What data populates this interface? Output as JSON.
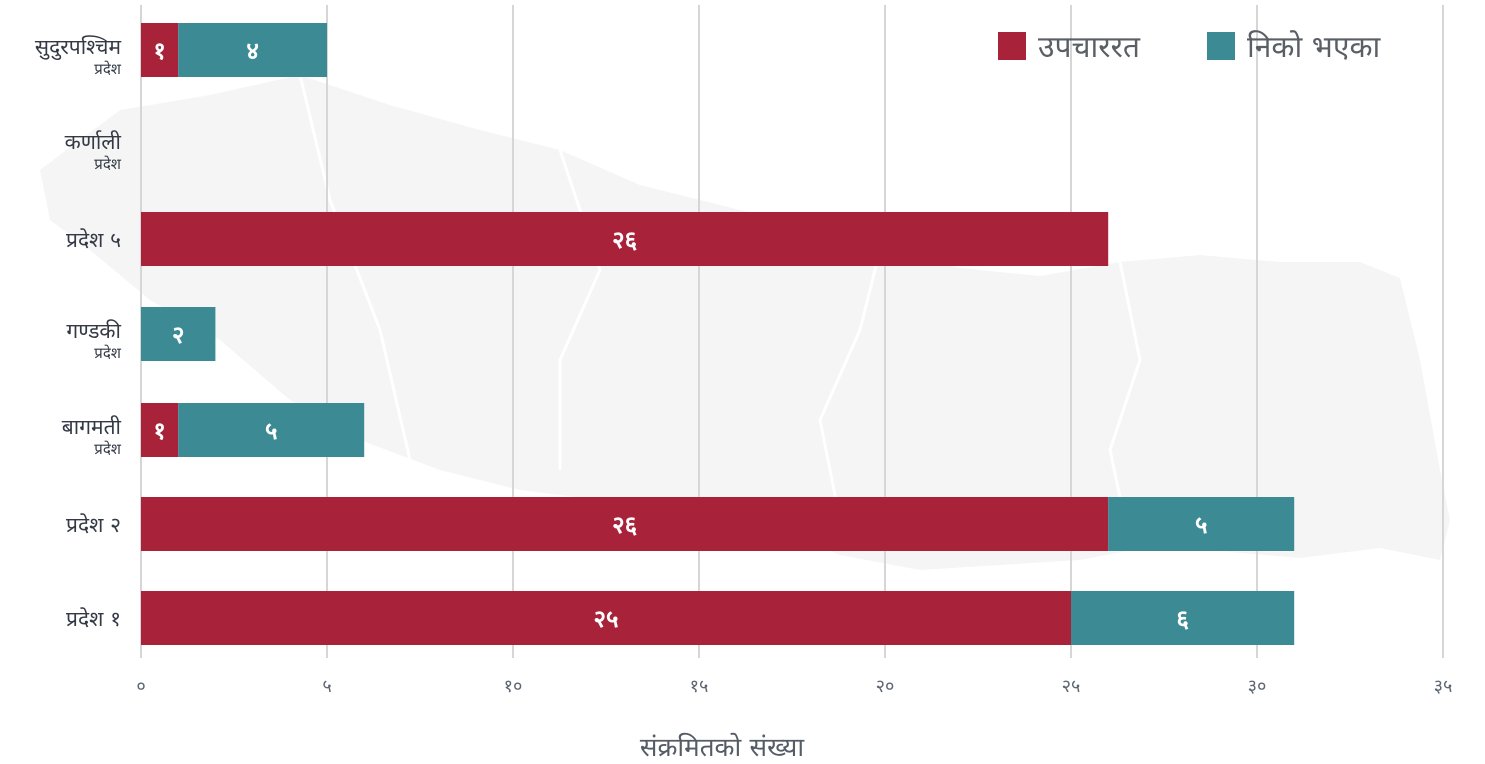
{
  "chart_data": {
    "type": "bar",
    "orientation": "horizontal",
    "stacked": true,
    "categories": [
      {
        "main": "सुदुरपश्चिम",
        "sub": "प्रदेश"
      },
      {
        "main": "कर्णाली",
        "sub": "प्रदेश"
      },
      {
        "main": "प्रदेश ५",
        "sub": ""
      },
      {
        "main": "गण्डकी",
        "sub": "प्रदेश"
      },
      {
        "main": "बागमती",
        "sub": "प्रदेश"
      },
      {
        "main": "प्रदेश २",
        "sub": ""
      },
      {
        "main": "प्रदेश १",
        "sub": ""
      }
    ],
    "series": [
      {
        "name": "उपचाररत",
        "color": "#a8223a",
        "values": [
          1,
          0,
          26,
          0,
          1,
          26,
          25
        ],
        "labels": [
          "१",
          "",
          "२६",
          "",
          "१",
          "२६",
          "२५"
        ]
      },
      {
        "name": "निको भएका",
        "color": "#3c8a93",
        "values": [
          4,
          0,
          0,
          2,
          5,
          5,
          6
        ],
        "labels": [
          "४",
          "",
          "",
          "२",
          "५",
          "५",
          "६"
        ]
      }
    ],
    "xlim": [
      0,
      35
    ],
    "xticks": [
      0,
      5,
      10,
      15,
      20,
      25,
      30,
      35
    ],
    "xtick_labels": [
      "०",
      "५",
      "१०",
      "१५",
      "२०",
      "२५",
      "३०",
      "३५"
    ],
    "xlabel": "संक्रमितको संख्या",
    "ylabel": "",
    "title": "",
    "grid": true,
    "legend_position": "top-right"
  }
}
